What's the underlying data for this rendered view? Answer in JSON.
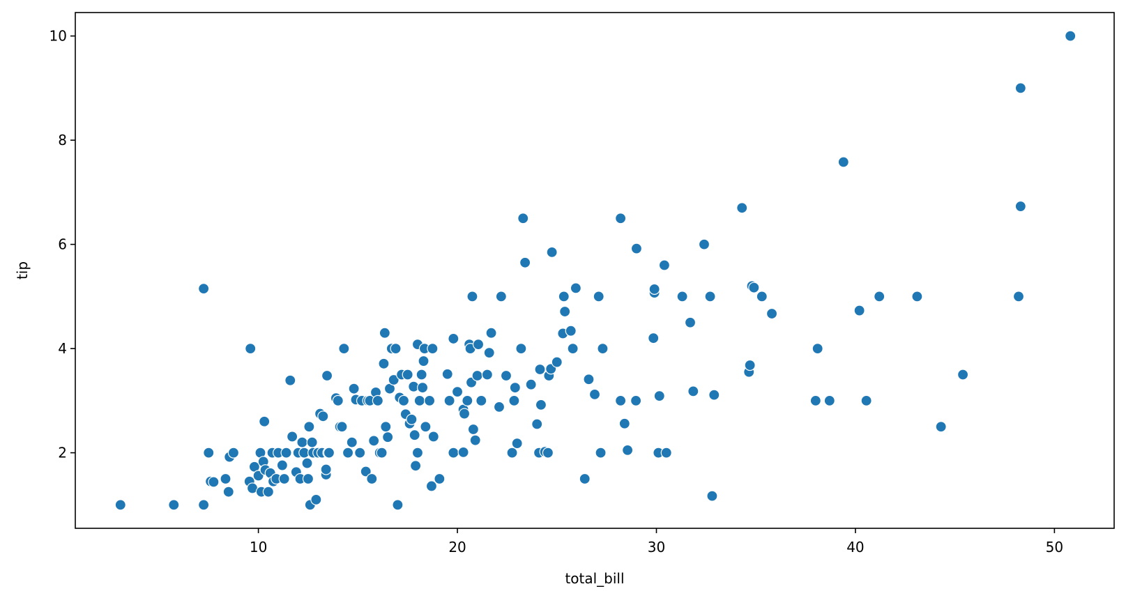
{
  "chart_data": {
    "type": "scatter",
    "title": "",
    "xlabel": "total_bill",
    "ylabel": "tip",
    "xlim": [
      0.8,
      53.0
    ],
    "ylim": [
      0.55,
      10.45
    ],
    "xticks": [
      10,
      20,
      30,
      40,
      50
    ],
    "yticks": [
      2,
      4,
      6,
      8,
      10
    ],
    "grid": false,
    "legend": "none",
    "marker_color": "#1f77b4",
    "marker_edge_color": "#ffffff",
    "points": [
      [
        3.07,
        1.0
      ],
      [
        5.75,
        1.0
      ],
      [
        7.25,
        1.0
      ],
      [
        12.6,
        1.0
      ],
      [
        12.9,
        1.1
      ],
      [
        17.0,
        1.0
      ],
      [
        26.4,
        1.5
      ],
      [
        32.8,
        1.17
      ],
      [
        7.25,
        5.15
      ],
      [
        7.5,
        2.0
      ],
      [
        7.6,
        1.45
      ],
      [
        7.75,
        1.44
      ],
      [
        8.35,
        1.5
      ],
      [
        8.5,
        1.25
      ],
      [
        8.55,
        1.92
      ],
      [
        8.75,
        2.0
      ],
      [
        9.55,
        1.45
      ],
      [
        9.6,
        4.0
      ],
      [
        9.7,
        1.32
      ],
      [
        9.8,
        1.73
      ],
      [
        10.0,
        1.56
      ],
      [
        10.1,
        2.0
      ],
      [
        10.15,
        1.25
      ],
      [
        10.25,
        1.83
      ],
      [
        10.3,
        2.6
      ],
      [
        10.35,
        1.67
      ],
      [
        10.5,
        1.25
      ],
      [
        10.6,
        1.61
      ],
      [
        10.7,
        2.0
      ],
      [
        10.75,
        1.45
      ],
      [
        10.9,
        1.5
      ],
      [
        11.0,
        2.0
      ],
      [
        11.2,
        1.76
      ],
      [
        11.3,
        1.5
      ],
      [
        11.4,
        2.0
      ],
      [
        11.6,
        3.39
      ],
      [
        11.7,
        2.31
      ],
      [
        11.9,
        1.63
      ],
      [
        12.0,
        2.0
      ],
      [
        12.1,
        1.5
      ],
      [
        12.2,
        2.2
      ],
      [
        12.3,
        2.0
      ],
      [
        12.45,
        1.8
      ],
      [
        12.5,
        1.5
      ],
      [
        12.55,
        2.5
      ],
      [
        12.7,
        2.2
      ],
      [
        12.75,
        2.0
      ],
      [
        13.0,
        2.0
      ],
      [
        13.1,
        2.75
      ],
      [
        13.2,
        2.0
      ],
      [
        13.25,
        2.7
      ],
      [
        13.4,
        1.58
      ],
      [
        13.4,
        1.68
      ],
      [
        13.45,
        3.48
      ],
      [
        13.5,
        2.0
      ],
      [
        13.55,
        2.0
      ],
      [
        13.9,
        3.05
      ],
      [
        14.0,
        3.0
      ],
      [
        14.1,
        2.5
      ],
      [
        14.2,
        2.5
      ],
      [
        14.3,
        4.0
      ],
      [
        14.5,
        2.0
      ],
      [
        14.7,
        2.2
      ],
      [
        14.8,
        3.23
      ],
      [
        14.9,
        3.02
      ],
      [
        15.1,
        2.0
      ],
      [
        15.2,
        3.0
      ],
      [
        15.4,
        1.64
      ],
      [
        15.5,
        3.0
      ],
      [
        15.6,
        3.0
      ],
      [
        15.7,
        1.5
      ],
      [
        15.8,
        2.23
      ],
      [
        15.9,
        3.16
      ],
      [
        16.0,
        3.0
      ],
      [
        16.1,
        2.0
      ],
      [
        16.2,
        2.0
      ],
      [
        16.3,
        3.71
      ],
      [
        16.35,
        4.3
      ],
      [
        16.4,
        2.5
      ],
      [
        16.5,
        2.3
      ],
      [
        16.6,
        3.23
      ],
      [
        16.7,
        4.0
      ],
      [
        16.8,
        3.4
      ],
      [
        16.9,
        4.0
      ],
      [
        17.1,
        3.06
      ],
      [
        17.2,
        3.5
      ],
      [
        17.3,
        3.0
      ],
      [
        17.4,
        2.74
      ],
      [
        17.5,
        3.5
      ],
      [
        17.6,
        2.56
      ],
      [
        17.7,
        2.64
      ],
      [
        17.8,
        3.27
      ],
      [
        17.85,
        2.34
      ],
      [
        17.9,
        1.75
      ],
      [
        18.0,
        2.0
      ],
      [
        18.0,
        4.08
      ],
      [
        18.1,
        3.0
      ],
      [
        18.2,
        3.5
      ],
      [
        18.25,
        3.25
      ],
      [
        18.3,
        3.76
      ],
      [
        18.35,
        4.0
      ],
      [
        18.4,
        2.5
      ],
      [
        18.6,
        3.0
      ],
      [
        18.7,
        1.36
      ],
      [
        18.75,
        4.0
      ],
      [
        18.8,
        2.31
      ],
      [
        19.1,
        1.5
      ],
      [
        19.5,
        3.51
      ],
      [
        19.6,
        3.0
      ],
      [
        19.8,
        2.0
      ],
      [
        19.8,
        4.19
      ],
      [
        20.0,
        3.17
      ],
      [
        20.3,
        2.01
      ],
      [
        20.3,
        2.83
      ],
      [
        20.35,
        2.75
      ],
      [
        20.5,
        3.0
      ],
      [
        20.6,
        4.08
      ],
      [
        20.65,
        4.0
      ],
      [
        20.7,
        3.35
      ],
      [
        20.75,
        5.0
      ],
      [
        20.8,
        2.45
      ],
      [
        20.9,
        2.24
      ],
      [
        21.0,
        3.48
      ],
      [
        21.05,
        4.08
      ],
      [
        21.2,
        3.0
      ],
      [
        21.5,
        3.5
      ],
      [
        21.6,
        3.92
      ],
      [
        21.7,
        4.3
      ],
      [
        22.1,
        2.88
      ],
      [
        22.2,
        5.0
      ],
      [
        22.45,
        3.48
      ],
      [
        22.75,
        2.0
      ],
      [
        22.85,
        3.0
      ],
      [
        22.9,
        3.25
      ],
      [
        23.0,
        2.18
      ],
      [
        23.2,
        4.0
      ],
      [
        23.3,
        6.5
      ],
      [
        23.4,
        5.65
      ],
      [
        23.7,
        3.31
      ],
      [
        24.0,
        2.55
      ],
      [
        24.1,
        2.0
      ],
      [
        24.15,
        3.6
      ],
      [
        24.2,
        2.92
      ],
      [
        24.4,
        2.02
      ],
      [
        24.55,
        2.0
      ],
      [
        24.6,
        3.48
      ],
      [
        24.7,
        3.61
      ],
      [
        24.75,
        5.85
      ],
      [
        25.0,
        3.74
      ],
      [
        25.3,
        4.29
      ],
      [
        25.35,
        5.0
      ],
      [
        25.4,
        4.71
      ],
      [
        25.7,
        4.34
      ],
      [
        25.8,
        4.0
      ],
      [
        25.95,
        5.16
      ],
      [
        26.6,
        3.41
      ],
      [
        26.9,
        3.12
      ],
      [
        27.1,
        5.0
      ],
      [
        27.2,
        2.0
      ],
      [
        27.3,
        4.0
      ],
      [
        28.2,
        6.5
      ],
      [
        28.2,
        3.0
      ],
      [
        28.4,
        2.56
      ],
      [
        28.55,
        2.05
      ],
      [
        28.97,
        3.0
      ],
      [
        29.0,
        5.92
      ],
      [
        29.85,
        4.2
      ],
      [
        29.9,
        5.07
      ],
      [
        29.9,
        5.14
      ],
      [
        30.1,
        2.0
      ],
      [
        30.15,
        3.09
      ],
      [
        30.4,
        5.6
      ],
      [
        30.5,
        2.0
      ],
      [
        31.3,
        5.0
      ],
      [
        31.7,
        4.5
      ],
      [
        31.85,
        3.18
      ],
      [
        32.4,
        6.0
      ],
      [
        32.7,
        5.0
      ],
      [
        32.9,
        3.11
      ],
      [
        34.3,
        6.7
      ],
      [
        34.65,
        3.55
      ],
      [
        34.7,
        3.68
      ],
      [
        34.8,
        5.2
      ],
      [
        34.9,
        5.17
      ],
      [
        35.3,
        5.0
      ],
      [
        35.8,
        4.67
      ],
      [
        38.0,
        3.0
      ],
      [
        38.1,
        4.0
      ],
      [
        38.7,
        3.0
      ],
      [
        39.4,
        7.58
      ],
      [
        40.2,
        4.73
      ],
      [
        40.55,
        3.0
      ],
      [
        41.2,
        5.0
      ],
      [
        43.1,
        5.0
      ],
      [
        44.3,
        2.5
      ],
      [
        45.4,
        3.5
      ],
      [
        48.2,
        5.0
      ],
      [
        48.3,
        9.0
      ],
      [
        48.3,
        6.73
      ],
      [
        50.8,
        10.0
      ]
    ]
  }
}
